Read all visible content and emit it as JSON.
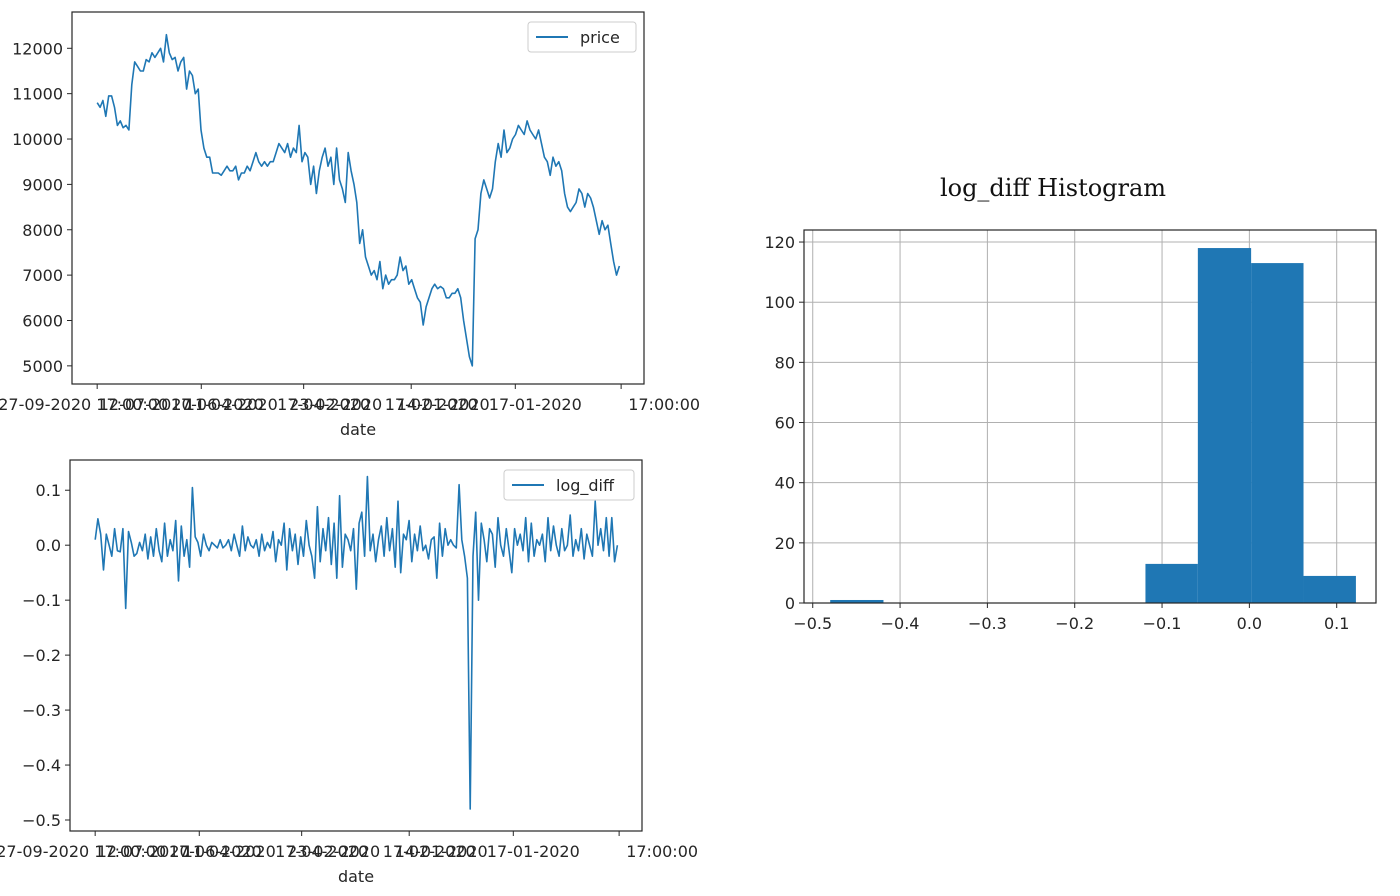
{
  "colors": {
    "line": "#1f77b4",
    "bar": "#1f77b4",
    "axis": "#262626",
    "grid": "#b0b0b0"
  },
  "chart_data": [
    {
      "type": "line",
      "xlabel": "date",
      "x_tick_labels": [
        "27-09-2020 17:00:00",
        "12-07-2020",
        "17-06-2020",
        "11-04-2020",
        "17-04-2020",
        "23-02-2020",
        "17-02-2020",
        "14-01-2020",
        "17-01-2020",
        "17:00:00"
      ],
      "y_ticks": [
        5000,
        6000,
        7000,
        8000,
        9000,
        10000,
        11000,
        12000
      ],
      "ylim": [
        4600,
        12800
      ],
      "legend": "price",
      "legend_position": "upper right",
      "series": [
        {
          "name": "price",
          "values": [
            10800,
            10700,
            10850,
            10500,
            10950,
            10950,
            10700,
            10300,
            10400,
            10250,
            10300,
            10200,
            11200,
            11700,
            11600,
            11500,
            11500,
            11750,
            11700,
            11900,
            11800,
            11900,
            12000,
            11700,
            12300,
            11900,
            11750,
            11800,
            11500,
            11700,
            11800,
            11100,
            11500,
            11400,
            11000,
            11100,
            10200,
            9800,
            9600,
            9600,
            9250,
            9250,
            9250,
            9200,
            9300,
            9400,
            9300,
            9300,
            9400,
            9100,
            9250,
            9250,
            9400,
            9300,
            9500,
            9700,
            9500,
            9400,
            9500,
            9400,
            9500,
            9500,
            9700,
            9900,
            9800,
            9700,
            9900,
            9600,
            9800,
            9700,
            10300,
            9500,
            9700,
            9600,
            9000,
            9400,
            8800,
            9300,
            9600,
            9800,
            9400,
            9600,
            9000,
            9800,
            9100,
            8900,
            8600,
            9700,
            9300,
            9000,
            8600,
            7700,
            8000,
            7400,
            7200,
            7000,
            7100,
            6900,
            7300,
            6700,
            7000,
            6800,
            6900,
            6900,
            7000,
            7400,
            7100,
            7200,
            6800,
            6900,
            6700,
            6500,
            6400,
            5900,
            6300,
            6500,
            6700,
            6800,
            6700,
            6750,
            6700,
            6500,
            6500,
            6600,
            6600,
            6700,
            6500,
            6000,
            5600,
            5200,
            5000,
            7800,
            8000,
            8800,
            9100,
            8900,
            8700,
            8900,
            9500,
            9900,
            9600,
            10200,
            9700,
            9800,
            10000,
            10100,
            10300,
            10200,
            10100,
            10400,
            10200,
            10100,
            10000,
            10200,
            9900,
            9600,
            9500,
            9200,
            9600,
            9400,
            9500,
            9300,
            8800,
            8500,
            8400,
            8500,
            8600,
            8900,
            8800,
            8500,
            8800,
            8700,
            8500,
            8200,
            7900,
            8200,
            8000,
            8100,
            7700,
            7300,
            7000,
            7200
          ]
        }
      ]
    },
    {
      "type": "line",
      "xlabel": "date",
      "x_tick_labels": [
        "27-09-2020 17:00:00",
        "12-07-2020",
        "17-06-2020",
        "11-04-2020",
        "17-04-2020",
        "23-02-2020",
        "17-02-2020",
        "14-01-2020",
        "17-01-2020",
        "17:00:00"
      ],
      "y_ticks": [
        -0.5,
        -0.4,
        -0.3,
        -0.2,
        -0.1,
        0.0,
        0.1
      ],
      "y_tick_labels": [
        "−0.5",
        "−0.4",
        "−0.3",
        "−0.2",
        "−0.1",
        "0.0",
        "0.1"
      ],
      "ylim": [
        -0.52,
        0.155
      ],
      "legend": "log_diff",
      "legend_position": "upper right",
      "series": [
        {
          "name": "log_diff",
          "values": [
            0.01,
            0.048,
            0.02,
            -0.045,
            0.02,
            0.0,
            -0.02,
            0.03,
            -0.01,
            -0.012,
            0.03,
            -0.115,
            0.025,
            0.005,
            -0.02,
            -0.015,
            0.005,
            -0.01,
            0.02,
            -0.025,
            0.015,
            -0.02,
            0.03,
            -0.01,
            -0.03,
            0.04,
            -0.02,
            0.01,
            -0.01,
            0.045,
            -0.065,
            0.035,
            -0.02,
            0.01,
            -0.04,
            0.105,
            0.015,
            0.005,
            -0.02,
            0.02,
            0.0,
            -0.01,
            0.005,
            0.0,
            -0.005,
            0.01,
            -0.005,
            0.0,
            0.01,
            -0.01,
            0.02,
            0.0,
            -0.02,
            0.035,
            -0.01,
            0.015,
            0.0,
            -0.005,
            0.01,
            -0.02,
            0.02,
            -0.01,
            0.005,
            -0.005,
            0.025,
            -0.03,
            0.01,
            0.0,
            0.04,
            -0.045,
            0.03,
            -0.01,
            0.02,
            -0.035,
            0.015,
            -0.02,
            0.045,
            0.0,
            -0.02,
            -0.06,
            0.07,
            -0.03,
            0.03,
            -0.01,
            0.05,
            -0.035,
            0.04,
            -0.06,
            0.09,
            -0.04,
            0.02,
            0.01,
            -0.01,
            0.03,
            -0.08,
            0.04,
            0.06,
            -0.02,
            0.125,
            -0.01,
            0.02,
            -0.03,
            0.01,
            0.035,
            -0.02,
            0.05,
            -0.01,
            0.03,
            -0.04,
            0.08,
            -0.05,
            0.02,
            0.01,
            0.045,
            -0.03,
            0.02,
            -0.01,
            0.035,
            -0.01,
            0.0,
            -0.025,
            0.01,
            0.015,
            -0.06,
            0.04,
            -0.02,
            0.03,
            0.0,
            0.01,
            0.0,
            -0.005,
            0.11,
            0.01,
            -0.02,
            -0.06,
            -0.48,
            -0.02,
            0.06,
            -0.1,
            0.04,
            0.01,
            -0.03,
            0.03,
            0.02,
            -0.04,
            0.05,
            0.0,
            -0.02,
            0.03,
            -0.01,
            -0.05,
            0.03,
            0.0,
            0.02,
            -0.01,
            0.05,
            -0.03,
            0.04,
            -0.02,
            0.01,
            0.0,
            0.02,
            -0.03,
            0.05,
            -0.01,
            0.035,
            0.0,
            -0.02,
            0.03,
            -0.01,
            0.0,
            0.055,
            -0.02,
            0.01,
            -0.01,
            0.03,
            -0.025,
            0.02,
            0.0,
            -0.02,
            0.08,
            0.0,
            0.03,
            -0.01,
            0.05,
            -0.02,
            0.05,
            -0.03,
            0.0
          ]
        }
      ]
    },
    {
      "type": "bar",
      "title": "log_diff  Histogram",
      "x_ticks": [
        -0.5,
        -0.4,
        -0.3,
        -0.2,
        -0.1,
        0.0,
        0.1
      ],
      "x_tick_labels": [
        "−0.5",
        "−0.4",
        "−0.3",
        "−0.2",
        "−0.1",
        "0.0",
        "0.1"
      ],
      "y_ticks": [
        0,
        20,
        40,
        60,
        80,
        100,
        120
      ],
      "xlim": [
        -0.51,
        0.145
      ],
      "ylim": [
        0,
        124
      ],
      "grid": true,
      "bins": [
        {
          "x0": -0.48,
          "x1": -0.419,
          "count": 1
        },
        {
          "x0": -0.419,
          "x1": -0.359,
          "count": 0
        },
        {
          "x0": -0.359,
          "x1": -0.299,
          "count": 0
        },
        {
          "x0": -0.299,
          "x1": -0.239,
          "count": 0
        },
        {
          "x0": -0.239,
          "x1": -0.179,
          "count": 0
        },
        {
          "x0": -0.179,
          "x1": -0.119,
          "count": 0
        },
        {
          "x0": -0.119,
          "x1": -0.059,
          "count": 13
        },
        {
          "x0": -0.059,
          "x1": 0.002,
          "count": 118
        },
        {
          "x0": 0.002,
          "x1": 0.062,
          "count": 113
        },
        {
          "x0": 0.062,
          "x1": 0.122,
          "count": 9
        }
      ]
    }
  ]
}
